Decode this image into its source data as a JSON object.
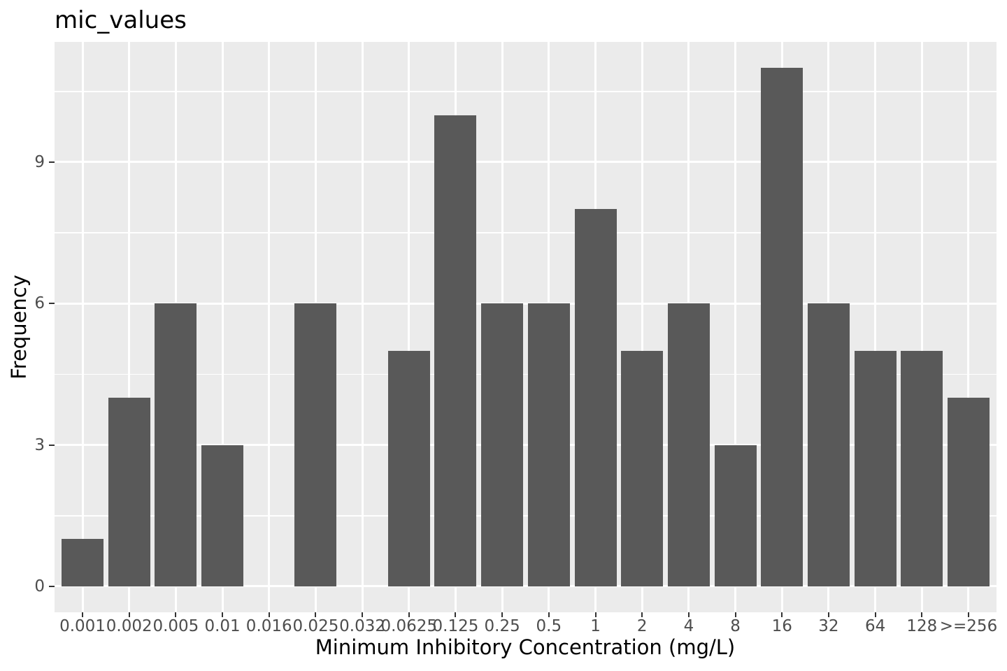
{
  "chart_data": {
    "type": "bar",
    "title": "mic_values",
    "xlabel": "Minimum Inhibitory Concentration (mg/L)",
    "ylabel": "Frequency",
    "categories": [
      "0.001",
      "0.002",
      "0.005",
      "0.01",
      "0.016",
      "0.025",
      "0.032",
      "0.0625",
      "0.125",
      "0.25",
      "0.5",
      "1",
      "2",
      "4",
      "8",
      "16",
      "32",
      "64",
      "128",
      ">=256"
    ],
    "values": [
      1,
      4,
      6,
      3,
      0,
      6,
      0,
      5,
      10,
      6,
      6,
      8,
      5,
      6,
      3,
      11,
      6,
      5,
      5,
      4
    ],
    "yticks": [
      0,
      3,
      6,
      9
    ],
    "y_minor_ticks": [
      1.5,
      4.5,
      7.5,
      10.5
    ],
    "ylim": [
      -0.55,
      11.55
    ],
    "grid": true,
    "legend_position": "none",
    "style": "ggplot-grey",
    "colors": {
      "bar": "#595959",
      "panel_background": "#EBEBEB",
      "gridline": "#FFFFFF",
      "tick_label": "#4D4D4D",
      "tick_mark": "#333333",
      "title_text": "#000000",
      "outer_background": "#FFFFFF"
    }
  }
}
